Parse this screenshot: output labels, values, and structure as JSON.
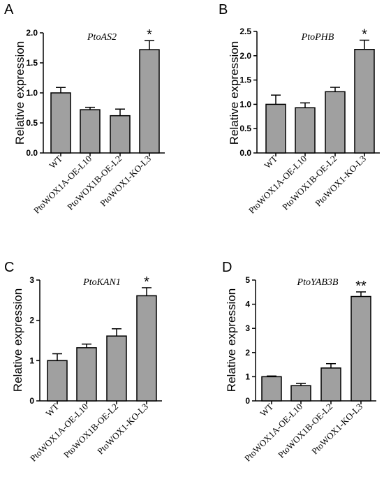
{
  "chart_data": [
    {
      "panel": "A",
      "type": "bar",
      "title": "PtoAS2",
      "ylabel": "Relative expression",
      "xlabel": "",
      "categories": [
        "WT",
        "PtoWOX1A-OE-L10",
        "PtoWOX1B-OE-L2",
        "PtoWOX1-KO-L3"
      ],
      "values": [
        1.0,
        0.72,
        0.62,
        1.72
      ],
      "errors": [
        0.09,
        0.04,
        0.11,
        0.15
      ],
      "significance": [
        "",
        "",
        "",
        "*"
      ],
      "ylim": [
        0,
        2.0
      ],
      "yticks": [
        "0.0",
        "0.5",
        "1.0",
        "1.5",
        "2.0"
      ],
      "bar_color": "#a0a0a0"
    },
    {
      "panel": "B",
      "type": "bar",
      "title": "PtoPHB",
      "ylabel": "Relative expression",
      "xlabel": "",
      "categories": [
        "WT",
        "PtoWOX1A-OE-L10",
        "PtoWOX1B-OE-L2",
        "PtoWOX1-KO-L3"
      ],
      "values": [
        1.0,
        0.93,
        1.26,
        2.13
      ],
      "errors": [
        0.19,
        0.1,
        0.09,
        0.19
      ],
      "significance": [
        "",
        "",
        "",
        "*"
      ],
      "ylim": [
        0,
        2.5
      ],
      "yticks": [
        "0.0",
        "0.5",
        "1.0",
        "1.5",
        "2.0",
        "2.5"
      ],
      "bar_color": "#a0a0a0"
    },
    {
      "panel": "C",
      "type": "bar",
      "title": "PtoKAN1",
      "ylabel": "Relative expression",
      "xlabel": "",
      "categories": [
        "WT",
        "PtoWOX1A-OE-L10",
        "PtoWOX1B-OE-L2",
        "PtoWOX1-KO-L3"
      ],
      "values": [
        1.0,
        1.32,
        1.61,
        2.61
      ],
      "errors": [
        0.17,
        0.09,
        0.18,
        0.2
      ],
      "significance": [
        "",
        "",
        "",
        "*"
      ],
      "ylim": [
        0,
        3
      ],
      "yticks": [
        "0",
        "1",
        "2",
        "3"
      ],
      "bar_color": "#a0a0a0"
    },
    {
      "panel": "D",
      "type": "bar",
      "title": "PtoYAB3B",
      "ylabel": "Relative expression",
      "xlabel": "",
      "categories": [
        "WT",
        "PtoWOX1A-OE-L10",
        "PtoWOX1B-OE-L2",
        "PtoWOX1-KO-L3"
      ],
      "values": [
        1.0,
        0.63,
        1.36,
        4.32
      ],
      "errors": [
        0.03,
        0.09,
        0.18,
        0.19
      ],
      "significance": [
        "",
        "",
        "",
        "**"
      ],
      "ylim": [
        0,
        5
      ],
      "yticks": [
        "0",
        "1",
        "2",
        "3",
        "4",
        "5"
      ],
      "bar_color": "#a0a0a0"
    }
  ]
}
